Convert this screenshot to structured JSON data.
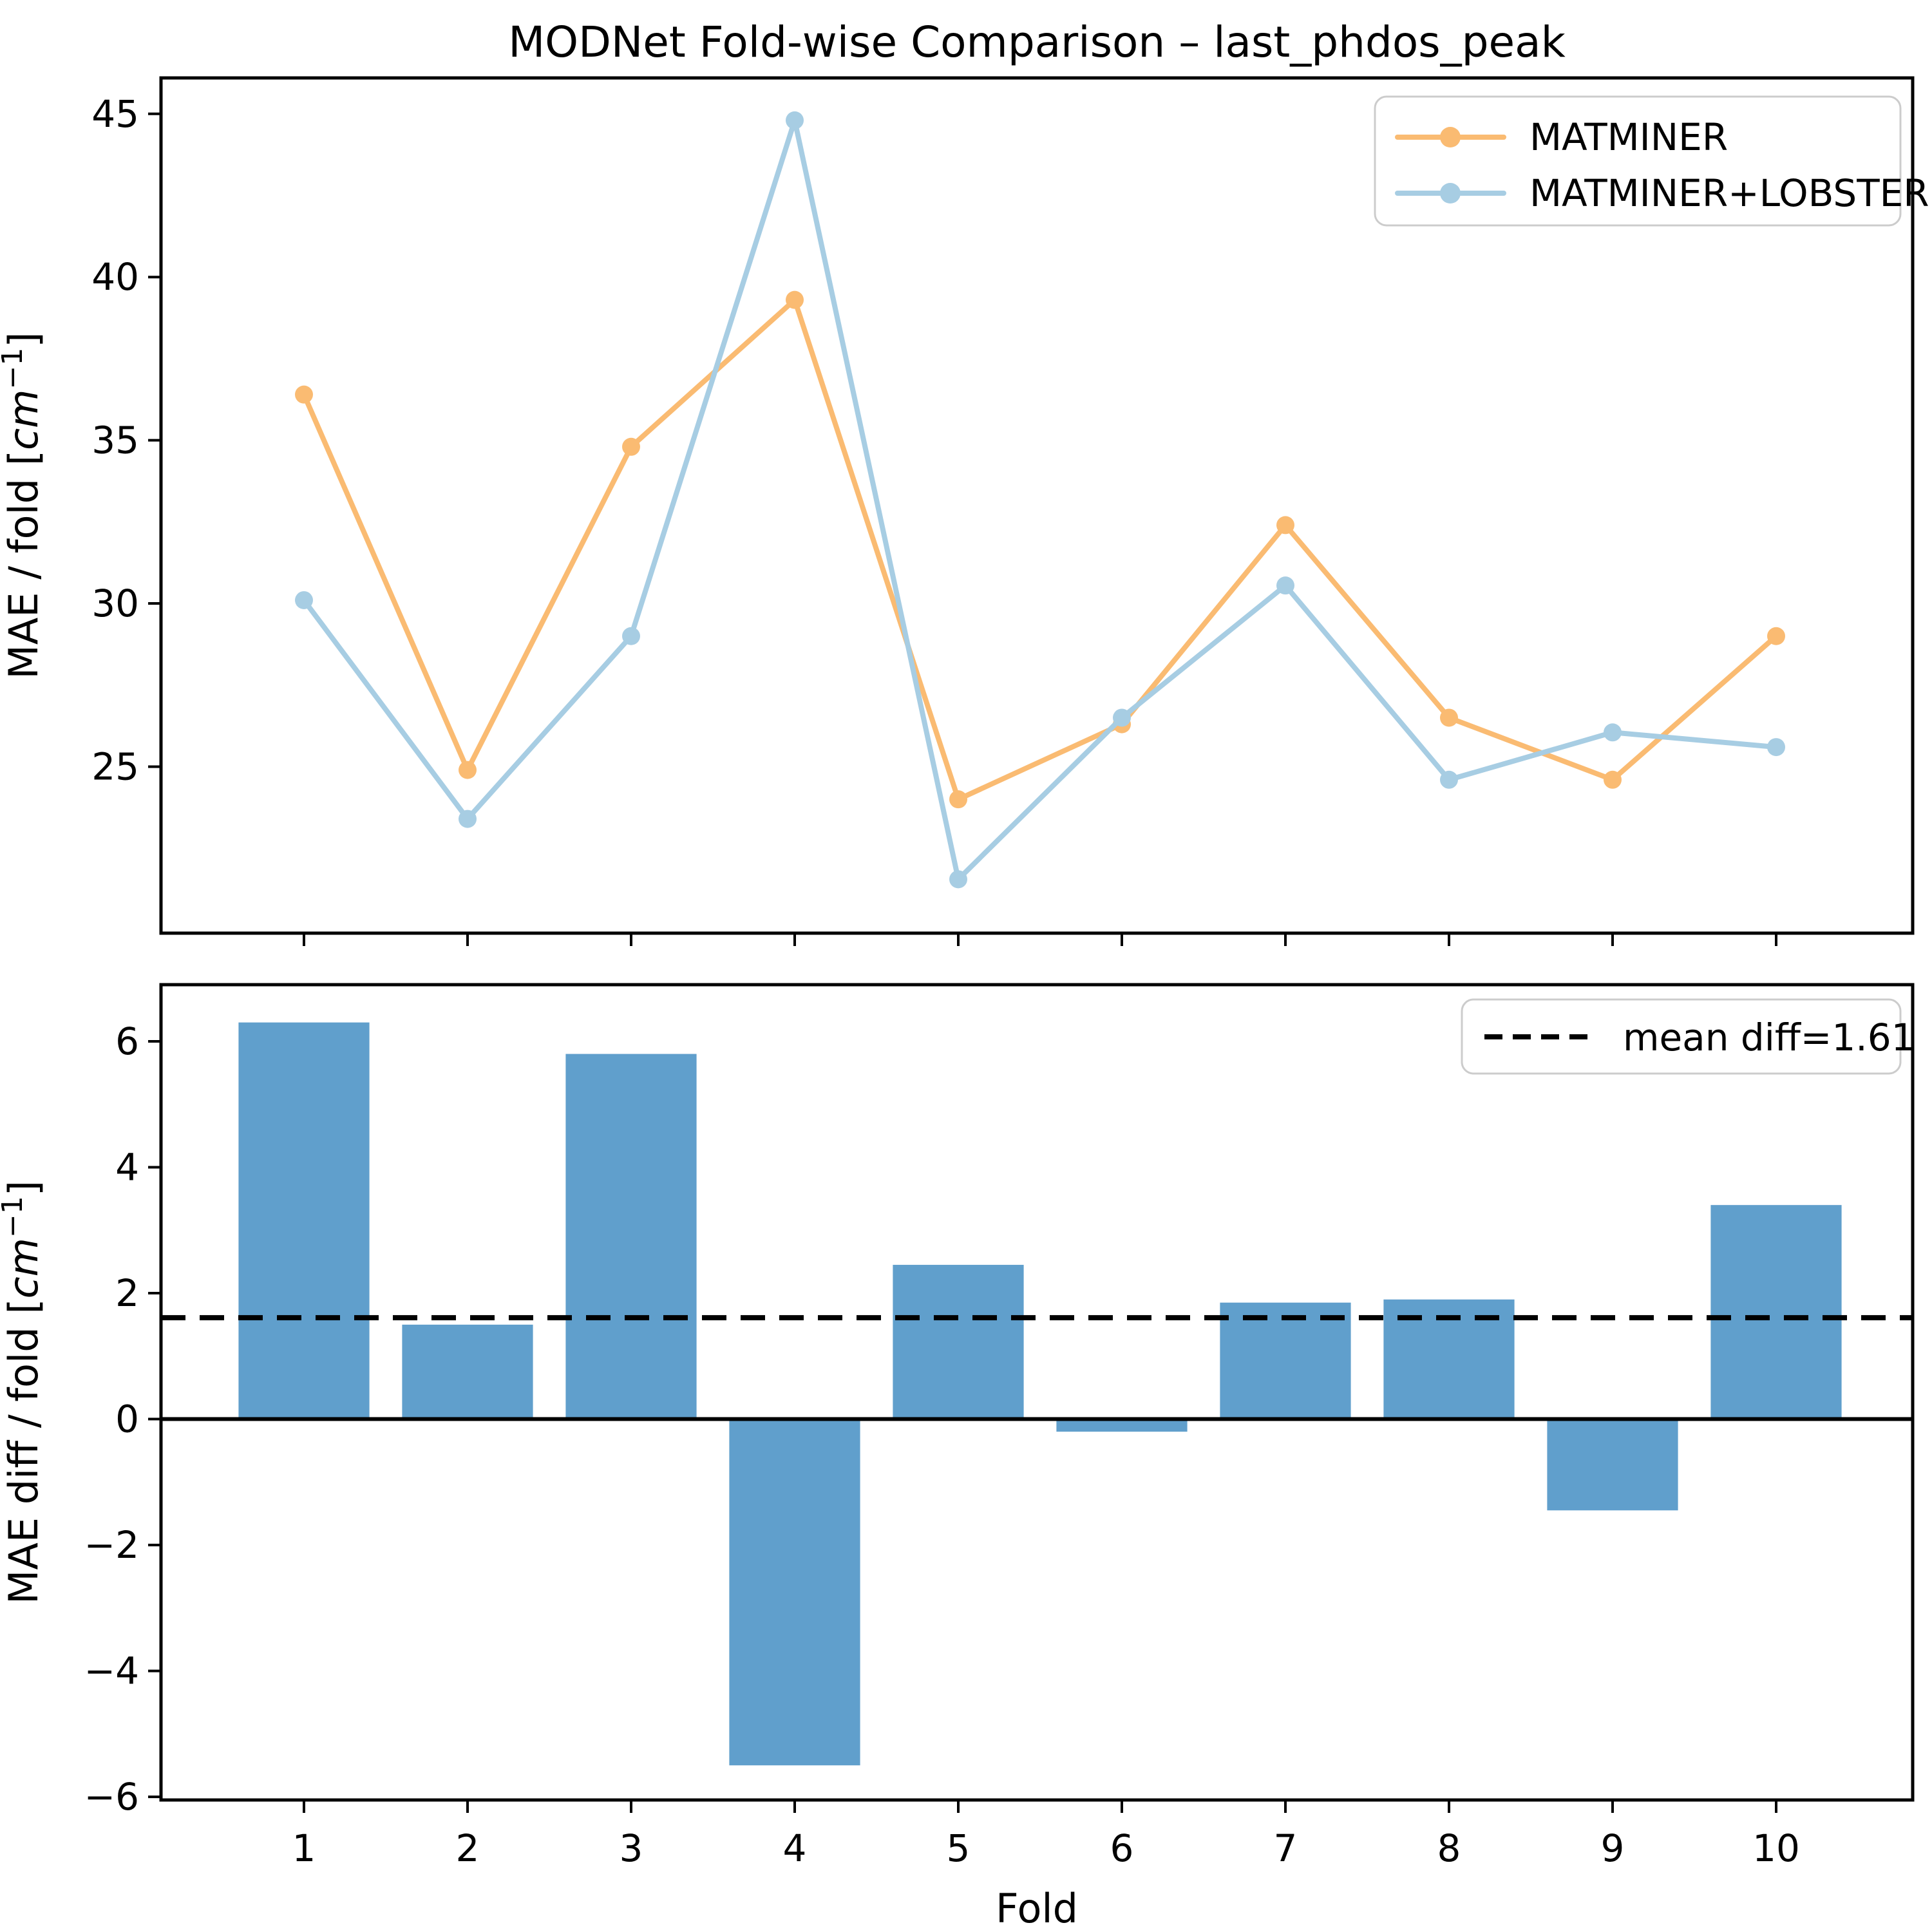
{
  "figure": {
    "background": "#ffffff",
    "title": "MODNet Fold-wise Comparison – last_phdos_peak"
  },
  "chart_data": [
    {
      "type": "line",
      "title": "MODNet Fold-wise Comparison – last_phdos_peak",
      "x": [
        1,
        2,
        3,
        4,
        5,
        6,
        7,
        8,
        9,
        10
      ],
      "xlabel": "",
      "ylabel": "MAE / fold [cm⁻¹]",
      "ylabel_parts": {
        "prefix": "MAE / fold [",
        "unit": "cm",
        "exponent": "−1",
        "suffix": "]"
      },
      "ylim": [
        19.9,
        46.1
      ],
      "yticks": [
        25,
        30,
        35,
        40,
        45
      ],
      "grid": false,
      "legend_position": "upper right",
      "series": [
        {
          "name": "MATMINER",
          "color": "#fabb72",
          "marker": "circle",
          "values": [
            36.4,
            24.9,
            34.8,
            39.3,
            24.0,
            26.3,
            32.4,
            26.5,
            24.6,
            29.0
          ]
        },
        {
          "name": "MATMINER+LOBSTER",
          "color": "#a7cde3",
          "marker": "circle",
          "values": [
            30.1,
            23.4,
            29.0,
            44.8,
            21.55,
            26.5,
            30.55,
            24.6,
            26.05,
            25.6
          ]
        }
      ]
    },
    {
      "type": "bar",
      "categories": [
        1,
        2,
        3,
        4,
        5,
        6,
        7,
        8,
        9,
        10
      ],
      "values": [
        6.3,
        1.5,
        5.8,
        -5.5,
        2.45,
        -0.2,
        1.85,
        1.9,
        -1.45,
        3.4
      ],
      "bar_color": "#609fcc",
      "xlabel": "Fold",
      "ylabel": "MAE diff / fold [cm⁻¹]",
      "ylabel_parts": {
        "prefix": "MAE diff / fold [",
        "unit": "cm",
        "exponent": "−1",
        "suffix": "]"
      },
      "ylim": [
        -6.05,
        6.9
      ],
      "yticks": [
        -6,
        -4,
        -2,
        0,
        2,
        4,
        6
      ],
      "grid": false,
      "zero_line": true,
      "legend_position": "upper right",
      "mean_line": {
        "value": 1.61,
        "style": "dashed",
        "color": "#000000",
        "label": "mean diff=1.61"
      }
    }
  ]
}
